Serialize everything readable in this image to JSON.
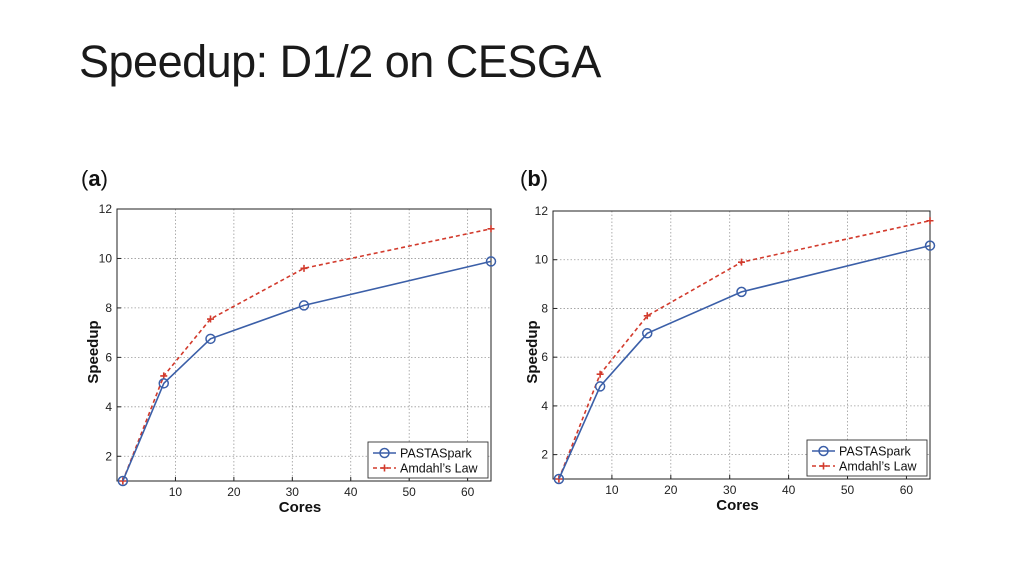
{
  "slide": {
    "title": "Speedup: D1/2 on CESGA"
  },
  "colors": {
    "pasta": "#3b5fa8",
    "amdahl": "#d23a2c",
    "grid": "#9a9a9a"
  },
  "chart_data": [
    {
      "type": "line",
      "panel": "a",
      "panel_label": {
        "open": "(",
        "letter": "a",
        "close": ")"
      },
      "xlabel": "Cores",
      "ylabel": "Speedup",
      "xlim": [
        0,
        64
      ],
      "ylim": [
        1,
        12
      ],
      "xticks": [
        10,
        20,
        30,
        40,
        50,
        60
      ],
      "yticks": [
        2,
        4,
        6,
        8,
        10,
        12
      ],
      "legend_position": "bottom-right",
      "series": [
        {
          "name": "PASTASpark",
          "marker": "circle",
          "style": "solid",
          "color": "#3b5fa8",
          "x": [
            1,
            8,
            16,
            32,
            64
          ],
          "y": [
            1.0,
            4.95,
            6.75,
            8.1,
            9.88
          ]
        },
        {
          "name": "Amdahl’s Law",
          "marker": "plus",
          "style": "dashed",
          "color": "#d23a2c",
          "x": [
            1,
            8,
            16,
            32,
            64
          ],
          "y": [
            1.0,
            5.25,
            7.55,
            9.6,
            11.2
          ]
        }
      ]
    },
    {
      "type": "line",
      "panel": "b",
      "panel_label": {
        "open": "(",
        "letter": "b",
        "close": ")"
      },
      "xlabel": "Cores",
      "ylabel": "Speedup",
      "xlim": [
        0,
        64
      ],
      "ylim": [
        1,
        12
      ],
      "xticks": [
        10,
        20,
        30,
        40,
        50,
        60
      ],
      "yticks": [
        2,
        4,
        6,
        8,
        10,
        12
      ],
      "legend_position": "bottom-right",
      "series": [
        {
          "name": "PASTASpark",
          "marker": "circle",
          "style": "solid",
          "color": "#3b5fa8",
          "x": [
            1,
            8,
            16,
            32,
            64
          ],
          "y": [
            1.0,
            4.8,
            6.98,
            8.68,
            10.58
          ]
        },
        {
          "name": "Amdahl’s Law",
          "marker": "plus",
          "style": "dashed",
          "color": "#d23a2c",
          "x": [
            1,
            8,
            16,
            32,
            64
          ],
          "y": [
            1.0,
            5.3,
            7.7,
            9.9,
            11.6
          ]
        }
      ]
    }
  ]
}
